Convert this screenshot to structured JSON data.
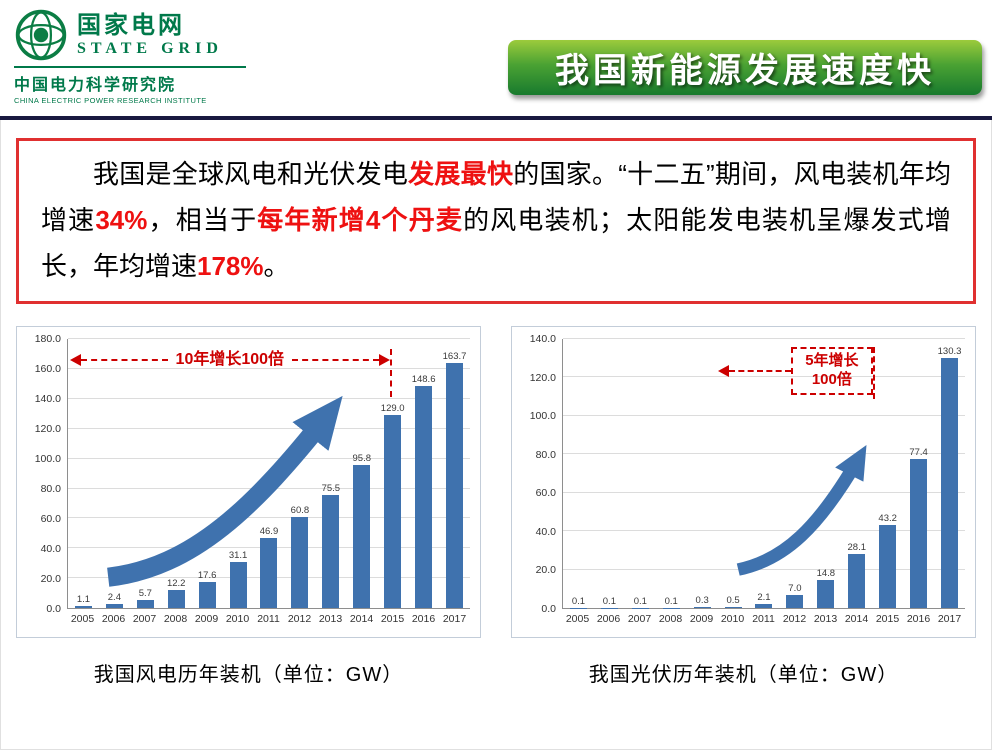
{
  "header": {
    "logo": {
      "brand_cn": "国家电网",
      "brand_en": "STATE GRID",
      "institute_cn": "中国电力科学研究院",
      "institute_en": "CHINA ELECTRIC POWER RESEARCH INSTITUTE"
    },
    "title": "我国新能源发展速度快"
  },
  "summary": {
    "segments": [
      {
        "text": "我国是全球风电和光伏发电",
        "highlight": false
      },
      {
        "text": "发展最快",
        "highlight": true
      },
      {
        "text": "的国家。“十二五”期间，风电装机年均增速",
        "highlight": false
      },
      {
        "text": "34%",
        "highlight": true
      },
      {
        "text": "，相当于",
        "highlight": false
      },
      {
        "text": "每年新增4个丹麦",
        "highlight": true
      },
      {
        "text": "的风电装机；太阳能发电装机呈爆发式增长，年均增速",
        "highlight": false
      },
      {
        "text": "178%",
        "highlight": true
      },
      {
        "text": "。",
        "highlight": false
      }
    ]
  },
  "colors": {
    "bar_blue": "#3f72ae",
    "accent_red": "#cc0000",
    "highlight_red": "#ee1111",
    "brand_green": "#00794a",
    "banner_light": "#9ccb3c",
    "banner_dark": "#187a2e"
  },
  "chart_data": [
    {
      "type": "bar",
      "title": "我国风电历年装机（单位：GW）",
      "categories": [
        "2005",
        "2006",
        "2007",
        "2008",
        "2009",
        "2010",
        "2011",
        "2012",
        "2013",
        "2014",
        "2015",
        "2016",
        "2017"
      ],
      "values": [
        1.1,
        2.4,
        5.7,
        12.2,
        17.6,
        31.1,
        46.9,
        60.8,
        75.5,
        95.8,
        129.0,
        148.6,
        163.7
      ],
      "xlabel": "",
      "ylabel": "",
      "ylim": [
        0,
        180
      ],
      "ytick_step": 20,
      "grid": true,
      "legend": "none",
      "annotation": "10年增长100倍",
      "unit": "GW"
    },
    {
      "type": "bar",
      "title": "我国光伏历年装机（单位：GW）",
      "categories": [
        "2005",
        "2006",
        "2007",
        "2008",
        "2009",
        "2010",
        "2011",
        "2012",
        "2013",
        "2014",
        "2015",
        "2016",
        "2017"
      ],
      "values": [
        0.1,
        0.1,
        0.1,
        0.1,
        0.3,
        0.5,
        2.1,
        7.0,
        14.8,
        28.1,
        43.2,
        77.4,
        130.3
      ],
      "xlabel": "",
      "ylabel": "",
      "ylim": [
        0,
        140
      ],
      "ytick_step": 20,
      "grid": true,
      "legend": "none",
      "annotation": "5年增长\n100倍",
      "unit": "GW"
    }
  ]
}
